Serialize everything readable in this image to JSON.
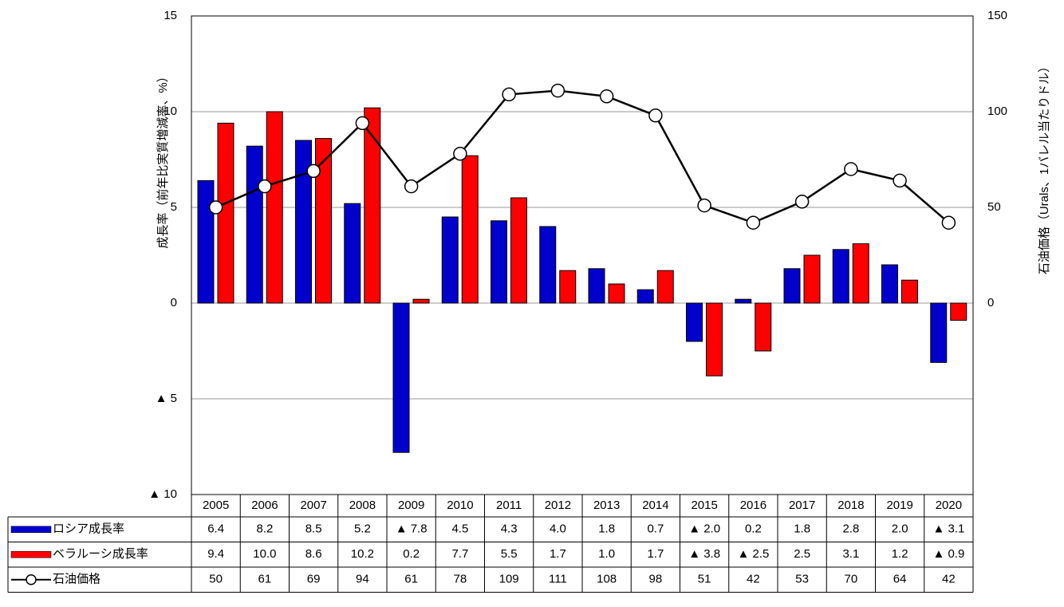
{
  "chart_data": {
    "type": "bar",
    "ylabel": "成長率（前年比実質増減率、%）",
    "y2label": "石油価格（Urals、1バレル当たりドル）",
    "categories": [
      "2005",
      "2006",
      "2007",
      "2008",
      "2009",
      "2010",
      "2011",
      "2012",
      "2013",
      "2014",
      "2015",
      "2016",
      "2017",
      "2018",
      "2019",
      "2020"
    ],
    "series": [
      {
        "name": "ロシア成長率",
        "color": "#0000cc",
        "type": "bar",
        "values": [
          6.4,
          8.2,
          8.5,
          5.2,
          -7.8,
          4.5,
          4.3,
          4.0,
          1.8,
          0.7,
          -2.0,
          0.2,
          1.8,
          2.8,
          2.0,
          -3.1
        ],
        "value_labels": [
          "6.4",
          "8.2",
          "8.5",
          "5.2",
          "▲ 7.8",
          "4.5",
          "4.3",
          "4.0",
          "1.8",
          "0.7",
          "▲ 2.0",
          "0.2",
          "1.8",
          "2.8",
          "2.0",
          "▲ 3.1"
        ]
      },
      {
        "name": "ベラルーシ成長率",
        "color": "#ff0000",
        "type": "bar",
        "values": [
          9.4,
          10.0,
          8.6,
          10.2,
          0.2,
          7.7,
          5.5,
          1.7,
          1.0,
          1.7,
          -3.8,
          -2.5,
          2.5,
          3.1,
          1.2,
          -0.9
        ],
        "value_labels": [
          "9.4",
          "10.0",
          "8.6",
          "10.2",
          "0.2",
          "7.7",
          "5.5",
          "1.7",
          "1.0",
          "1.7",
          "▲ 3.8",
          "▲ 2.5",
          "2.5",
          "3.1",
          "1.2",
          "▲ 0.9"
        ]
      },
      {
        "name": "石油価格",
        "color": "#000000",
        "type": "line",
        "axis": "y2",
        "values": [
          50,
          61,
          69,
          94,
          61,
          78,
          109,
          111,
          108,
          98,
          51,
          42,
          53,
          70,
          64,
          42
        ]
      }
    ],
    "ylim": [
      -10,
      15
    ],
    "yticks": [
      {
        "value": -10,
        "label": "▲ 10"
      },
      {
        "value": -5,
        "label": "▲ 5"
      },
      0,
      5,
      10,
      15
    ],
    "y2lim": [
      -100,
      150
    ],
    "y2ticks": [
      0,
      50,
      100,
      150
    ],
    "grid": true
  }
}
